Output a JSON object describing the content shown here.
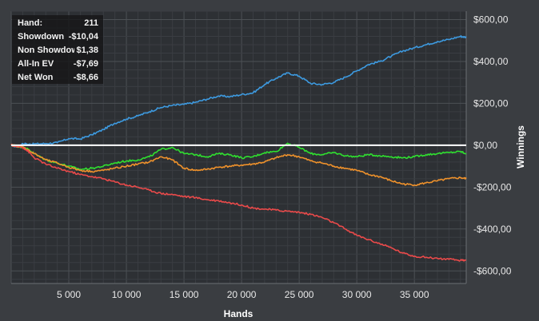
{
  "info_panel": {
    "rows": [
      {
        "label": "Hand:",
        "value": "211"
      },
      {
        "label": "Showdown",
        "value": "-$10,04"
      },
      {
        "label": "Non Showdown",
        "value": "$1,38"
      },
      {
        "label": "All-In EV",
        "value": "-$7,69"
      },
      {
        "label": "Net Won",
        "value": "-$8,66"
      }
    ]
  },
  "chart_data": {
    "type": "line",
    "xlabel": "Hands",
    "ylabel": "Winnings",
    "xlim": [
      0,
      39500
    ],
    "ylim": [
      -660,
      640
    ],
    "x_ticks": [
      5000,
      10000,
      15000,
      20000,
      25000,
      30000,
      35000
    ],
    "x_tick_labels": [
      "5 000",
      "10 000",
      "15 000",
      "20 000",
      "25 000",
      "30 000",
      "35 000"
    ],
    "y_ticks": [
      600,
      400,
      200,
      0,
      -200,
      -400,
      -600
    ],
    "y_tick_labels": [
      "$600,00",
      "$400,00",
      "$200,00",
      "$0,00",
      "-$200,00",
      "-$400,00",
      "-$600,00"
    ],
    "grid": true,
    "series": [
      {
        "color": "#3d9ae0",
        "x": [
          0,
          500,
          1000,
          1500,
          2000,
          3000,
          4000,
          5000,
          6000,
          7000,
          8000,
          9000,
          10000,
          11000,
          12000,
          13000,
          14000,
          15000,
          16000,
          17000,
          18000,
          19000,
          20000,
          21000,
          22000,
          23000,
          24000,
          25000,
          26000,
          27000,
          28000,
          29000,
          30000,
          31000,
          32000,
          33000,
          34000,
          35000,
          36000,
          37000,
          38000,
          39000,
          39500
        ],
        "y": [
          0,
          -8,
          8,
          4,
          6,
          8,
          12,
          32,
          30,
          50,
          75,
          105,
          125,
          140,
          160,
          180,
          190,
          195,
          205,
          220,
          235,
          232,
          242,
          250,
          290,
          320,
          345,
          330,
          295,
          290,
          300,
          325,
          355,
          385,
          400,
          425,
          450,
          465,
          480,
          495,
          505,
          520,
          515
        ]
      },
      {
        "color": "#2fe02f",
        "x": [
          0,
          500,
          1000,
          1500,
          2000,
          3000,
          4000,
          5000,
          6000,
          7000,
          8000,
          9000,
          10000,
          11000,
          12000,
          13000,
          14000,
          15000,
          16000,
          17000,
          18000,
          19000,
          20000,
          21000,
          22000,
          23000,
          24000,
          25000,
          26000,
          27000,
          28000,
          29000,
          30000,
          31000,
          32000,
          33000,
          34000,
          35000,
          36000,
          37000,
          38000,
          39000,
          39500
        ],
        "y": [
          0,
          -5,
          -10,
          -20,
          -40,
          -70,
          -85,
          -100,
          -115,
          -110,
          -100,
          -85,
          -75,
          -70,
          -55,
          -20,
          -10,
          -40,
          -45,
          -55,
          -40,
          -45,
          -60,
          -55,
          -35,
          -30,
          10,
          -10,
          -40,
          -45,
          -35,
          -50,
          -55,
          -45,
          -50,
          -55,
          -60,
          -55,
          -45,
          -40,
          -35,
          -30,
          -40
        ]
      },
      {
        "color": "#f0922b",
        "x": [
          0,
          500,
          1000,
          1500,
          2000,
          3000,
          4000,
          5000,
          6000,
          7000,
          8000,
          9000,
          10000,
          11000,
          12000,
          13000,
          14000,
          15000,
          16000,
          17000,
          18000,
          19000,
          20000,
          21000,
          22000,
          23000,
          24000,
          25000,
          26000,
          27000,
          28000,
          29000,
          30000,
          31000,
          32000,
          33000,
          34000,
          35000,
          36000,
          37000,
          38000,
          39000,
          39500
        ],
        "y": [
          0,
          -3,
          -8,
          -25,
          -40,
          -70,
          -85,
          -105,
          -120,
          -125,
          -120,
          -110,
          -100,
          -90,
          -80,
          -55,
          -70,
          -110,
          -120,
          -115,
          -105,
          -100,
          -95,
          -90,
          -80,
          -60,
          -45,
          -55,
          -75,
          -85,
          -100,
          -110,
          -120,
          -140,
          -150,
          -170,
          -185,
          -190,
          -180,
          -170,
          -160,
          -155,
          -160
        ]
      },
      {
        "color": "#ea4a4a",
        "x": [
          0,
          500,
          1000,
          1500,
          2000,
          3000,
          4000,
          5000,
          6000,
          7000,
          8000,
          9000,
          10000,
          11000,
          12000,
          13000,
          14000,
          15000,
          16000,
          17000,
          18000,
          19000,
          20000,
          21000,
          22000,
          23000,
          24000,
          25000,
          26000,
          27000,
          28000,
          29000,
          30000,
          31000,
          32000,
          33000,
          34000,
          35000,
          36000,
          37000,
          38000,
          39000,
          39500
        ],
        "y": [
          0,
          -5,
          -10,
          -30,
          -60,
          -90,
          -110,
          -125,
          -140,
          -150,
          -160,
          -175,
          -190,
          -200,
          -215,
          -230,
          -235,
          -245,
          -250,
          -260,
          -265,
          -275,
          -285,
          -300,
          -305,
          -310,
          -315,
          -320,
          -330,
          -345,
          -370,
          -400,
          -430,
          -450,
          -470,
          -490,
          -515,
          -530,
          -535,
          -540,
          -545,
          -550,
          -548
        ]
      },
      {
        "color": "#ffffff",
        "x": [
          0,
          39500
        ],
        "y": [
          0,
          0
        ]
      }
    ]
  }
}
